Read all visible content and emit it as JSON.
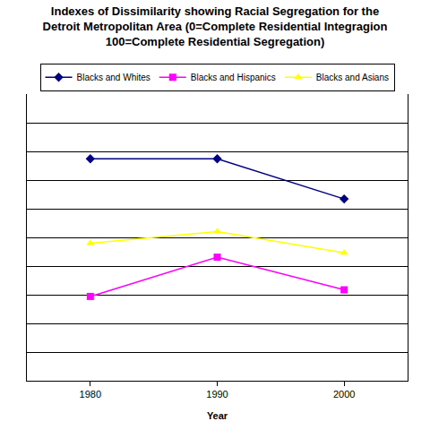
{
  "chart_data": {
    "type": "line",
    "title": "Indexes of Dissimilarity showing Racial Segregation for the\nDetroit Metropolitan Area (0=Complete Residential Integragion\n100=Complete Residential Segregation)",
    "x_label": "Year",
    "categories": [
      "1980",
      "1990",
      "2000"
    ],
    "series": [
      {
        "name": "Blacks and Whites",
        "color": "#000080",
        "marker": "diamond",
        "values": [
          77.4,
          77.4,
          63.4
        ]
      },
      {
        "name": "Blacks and Hispanics",
        "color": "#ff00ff",
        "marker": "square",
        "values": [
          29.4,
          43.1,
          31.7
        ]
      },
      {
        "name": "Blacks and Asians",
        "color": "#ffff00",
        "marker": "triangle-up",
        "values": [
          48,
          52,
          44.6
        ]
      }
    ],
    "ylim": [
      0,
      100
    ],
    "yticks": [
      0,
      10,
      20,
      30,
      40,
      50,
      60,
      70,
      80,
      90,
      100
    ],
    "grid": true,
    "legend": "top",
    "tick_labels": "x"
  }
}
